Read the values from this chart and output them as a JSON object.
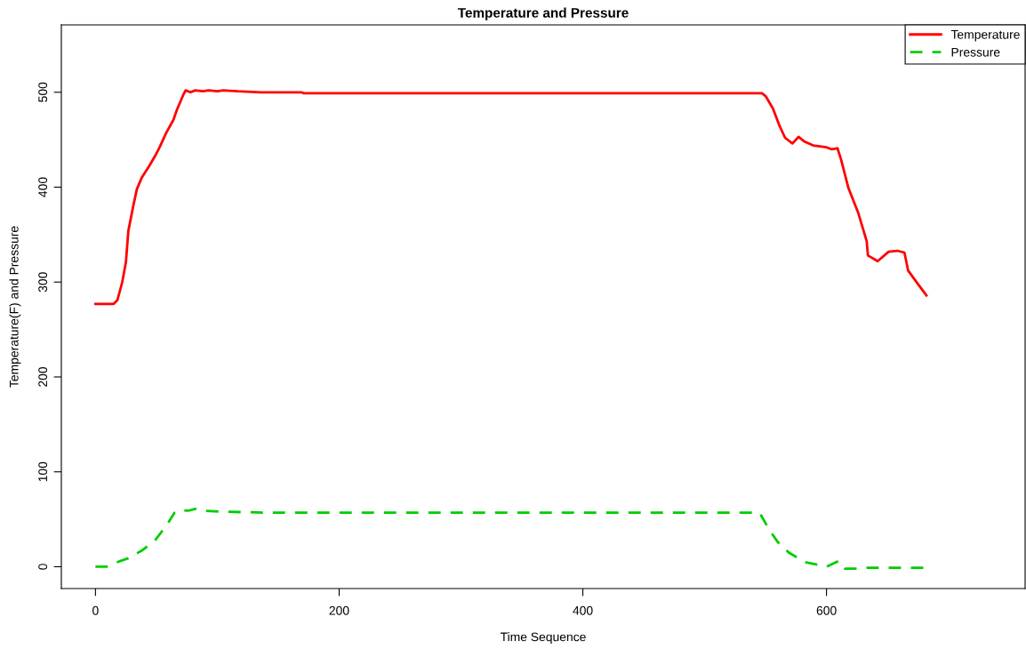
{
  "chart_data": {
    "type": "line",
    "title": "Temperature and Pressure",
    "xlabel": "Time Sequence",
    "ylabel": "Temperature(F) and Pressure",
    "xlim": [
      -28,
      763
    ],
    "ylim": [
      -23,
      571
    ],
    "xticks": [
      0,
      200,
      400,
      600
    ],
    "yticks": [
      0,
      100,
      200,
      300,
      400,
      500
    ],
    "grid": false,
    "legend": "top right",
    "series": [
      {
        "name": "Temperature",
        "color": "#ff0000",
        "line_style": "solid",
        "x": [
          0,
          15,
          18,
          22,
          25,
          27,
          31,
          34,
          38,
          44,
          49,
          53,
          58,
          64,
          67,
          72,
          74,
          78,
          82,
          88,
          93,
          100,
          105,
          117,
          136,
          169,
          171,
          547,
          550,
          556,
          561,
          566,
          572,
          577,
          582,
          589,
          600,
          604,
          609,
          612,
          618,
          626,
          633,
          634,
          642,
          651,
          658,
          664,
          667,
          675,
          682
        ],
        "values": [
          277,
          277,
          281,
          300,
          321,
          354,
          380,
          398,
          410,
          422,
          433,
          443,
          457,
          471,
          482,
          497,
          502,
          500,
          502,
          501,
          502,
          501,
          502,
          501,
          500,
          500,
          499,
          499,
          496,
          483,
          466,
          452,
          446,
          453,
          448,
          444,
          442,
          440,
          441,
          429,
          399,
          373,
          343,
          328,
          322,
          332,
          333,
          331,
          312,
          298,
          286
        ]
      },
      {
        "name": "Pressure",
        "color": "#00cd00",
        "line_style": "dashed",
        "x": [
          0,
          9,
          16,
          27,
          38,
          49,
          58,
          65,
          69,
          76,
          82,
          90,
          104,
          140,
          545,
          553,
          560,
          569,
          582,
          600,
          610,
          615,
          626,
          633,
          682
        ],
        "values": [
          0,
          0,
          4,
          9,
          17,
          28,
          43,
          57,
          60,
          59,
          61,
          59,
          58,
          57,
          57,
          39,
          26,
          15,
          5,
          0,
          6,
          -2,
          -2,
          -1,
          -1
        ]
      }
    ]
  }
}
